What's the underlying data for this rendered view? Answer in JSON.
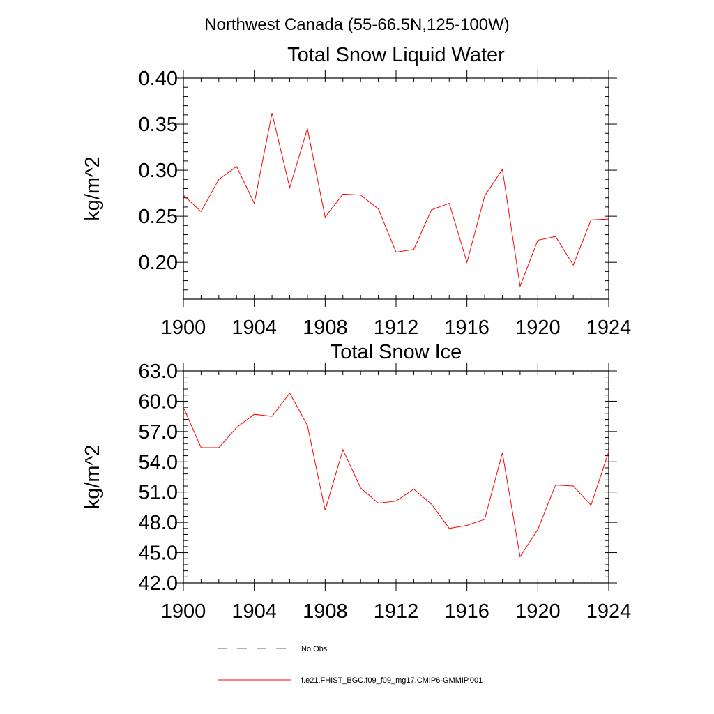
{
  "figure": {
    "title": "Northwest Canada (55-66.5N,125-100W)"
  },
  "legend": [
    {
      "label": "No Obs",
      "style": "dashed",
      "color": "#5a5f8a"
    },
    {
      "label": "f.e21.FHIST_BGC.f09_f09_mg17.CMIP6-GMMIP.001",
      "style": "solid",
      "color": "#ff0000"
    }
  ],
  "chart_data": [
    {
      "type": "line",
      "title": "Total Snow Liquid Water",
      "xlabel": "",
      "ylabel": "kg/m^2",
      "xlim": [
        1900,
        1924
      ],
      "ylim": [
        0.16,
        0.4
      ],
      "xticks": [
        1900,
        1904,
        1908,
        1912,
        1916,
        1920,
        1924
      ],
      "xtick_labels": [
        "1900",
        "1904",
        "1908",
        "1912",
        "1916",
        "1920",
        "1924"
      ],
      "yticks": [
        0.2,
        0.25,
        0.3,
        0.35,
        0.4
      ],
      "ytick_labels": [
        "0.20",
        "0.25",
        "0.30",
        "0.35",
        "0.40"
      ],
      "x": [
        1900,
        1901,
        1902,
        1903,
        1904,
        1905,
        1906,
        1907,
        1908,
        1909,
        1910,
        1911,
        1912,
        1913,
        1914,
        1915,
        1916,
        1917,
        1918,
        1919,
        1920,
        1921,
        1922,
        1923,
        1924
      ],
      "series": [
        {
          "name": "f.e21.FHIST_BGC.f09_f09_mg17.CMIP6-GMMIP.001",
          "color": "#ff0000",
          "values": [
            0.273,
            0.255,
            0.29,
            0.304,
            0.264,
            0.362,
            0.281,
            0.345,
            0.249,
            0.274,
            0.273,
            0.258,
            0.211,
            0.214,
            0.257,
            0.264,
            0.2,
            0.272,
            0.301,
            0.174,
            0.224,
            0.228,
            0.197,
            0.246,
            0.247
          ]
        }
      ]
    },
    {
      "type": "line",
      "title": "Total Snow Ice",
      "xlabel": "",
      "ylabel": "kg/m^2",
      "xlim": [
        1900,
        1924
      ],
      "ylim": [
        42.0,
        63.0
      ],
      "xticks": [
        1900,
        1904,
        1908,
        1912,
        1916,
        1920,
        1924
      ],
      "xtick_labels": [
        "1900",
        "1904",
        "1908",
        "1912",
        "1916",
        "1920",
        "1924"
      ],
      "yticks": [
        42.0,
        45.0,
        48.0,
        51.0,
        54.0,
        57.0,
        60.0,
        63.0
      ],
      "ytick_labels": [
        "42.0",
        "45.0",
        "48.0",
        "51.0",
        "54.0",
        "57.0",
        "60.0",
        "63.0"
      ],
      "x": [
        1900,
        1901,
        1902,
        1903,
        1904,
        1905,
        1906,
        1907,
        1908,
        1909,
        1910,
        1911,
        1912,
        1913,
        1914,
        1915,
        1916,
        1917,
        1918,
        1919,
        1920,
        1921,
        1922,
        1923,
        1924
      ],
      "series": [
        {
          "name": "f.e21.FHIST_BGC.f09_f09_mg17.CMIP6-GMMIP.001",
          "color": "#ff0000",
          "values": [
            59.4,
            55.4,
            55.4,
            57.4,
            58.7,
            58.5,
            60.8,
            57.6,
            49.2,
            55.2,
            51.4,
            49.9,
            50.1,
            51.3,
            49.8,
            47.4,
            47.7,
            48.3,
            54.9,
            44.6,
            47.3,
            51.7,
            51.6,
            49.7,
            55.0
          ]
        }
      ]
    }
  ]
}
